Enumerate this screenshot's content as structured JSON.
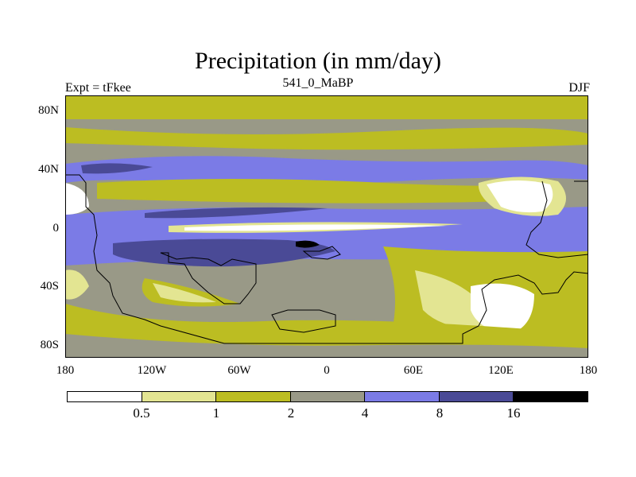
{
  "title": "Precipitation (in mm/day)",
  "left_string": "Expt = tFkee",
  "center_string": "541_0_MaBP",
  "right_string": "DJF",
  "lat_labels": [
    "80N",
    "40N",
    "0",
    "40S",
    "80S"
  ],
  "lon_labels": [
    "180",
    "120W",
    "60W",
    "0",
    "60E",
    "120E",
    "180"
  ],
  "colorbar": {
    "labels": [
      "0.5",
      "1",
      "2",
      "4",
      "8",
      "16"
    ],
    "colors": [
      "#ffffff",
      "#e3e592",
      "#bcbd22",
      "#999987",
      "#7b7be6",
      "#4a4a96",
      "#000000"
    ]
  },
  "palette": {
    "white": "#ffffff",
    "light_yellow": "#e3e592",
    "olive": "#bcbd22",
    "gray": "#999987",
    "light_blue": "#7b7be6",
    "dark_blue": "#4a4a96",
    "black": "#000000"
  }
}
